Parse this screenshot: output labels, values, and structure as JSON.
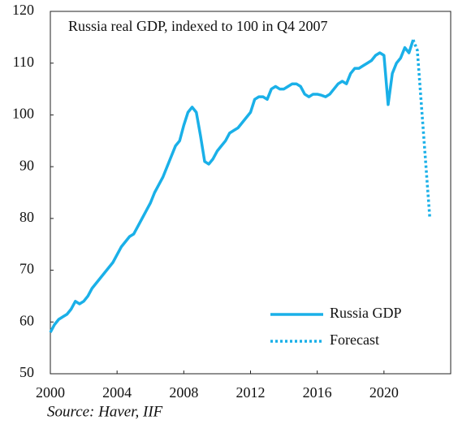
{
  "chart_data": {
    "type": "line",
    "title": "Russia real GDP, indexed to 100 in Q4 2007",
    "source": "Source: Haver, IIF",
    "xlim": [
      2000,
      2024
    ],
    "xticks": [
      2000,
      2004,
      2008,
      2012,
      2016,
      2020
    ],
    "ylim": [
      50,
      120
    ],
    "yticks": [
      50,
      60,
      70,
      80,
      90,
      100,
      110,
      120
    ],
    "grid": false,
    "legend": "lower right",
    "series": [
      {
        "name": "Russia GDP",
        "color": "#1ab0e8",
        "style": "solid",
        "x": [
          2000,
          2000.25,
          2000.5,
          2000.75,
          2001,
          2001.25,
          2001.5,
          2001.75,
          2002,
          2002.25,
          2002.5,
          2002.75,
          2003,
          2003.25,
          2003.5,
          2003.75,
          2004,
          2004.25,
          2004.5,
          2004.75,
          2005,
          2005.25,
          2005.5,
          2005.75,
          2006,
          2006.25,
          2006.5,
          2006.75,
          2007,
          2007.25,
          2007.5,
          2007.75,
          2008,
          2008.25,
          2008.5,
          2008.75,
          2009,
          2009.25,
          2009.5,
          2009.75,
          2010,
          2010.25,
          2010.5,
          2010.75,
          2011,
          2011.25,
          2011.5,
          2011.75,
          2012,
          2012.25,
          2012.5,
          2012.75,
          2013,
          2013.25,
          2013.5,
          2013.75,
          2014,
          2014.25,
          2014.5,
          2014.75,
          2015,
          2015.25,
          2015.5,
          2015.75,
          2016,
          2016.25,
          2016.5,
          2016.75,
          2017,
          2017.25,
          2017.5,
          2017.75,
          2018,
          2018.25,
          2018.5,
          2018.75,
          2019,
          2019.25,
          2019.5,
          2019.75,
          2020,
          2020.25,
          2020.5,
          2020.75,
          2021,
          2021.25,
          2021.5,
          2021.75
        ],
        "values": [
          58,
          59.5,
          60.5,
          61,
          61.5,
          62.5,
          64,
          63.5,
          64,
          65,
          66.5,
          67.5,
          68.5,
          69.5,
          70.5,
          71.5,
          73,
          74.5,
          75.5,
          76.5,
          77,
          78.5,
          80,
          81.5,
          83,
          85,
          86.5,
          88,
          90,
          92,
          94,
          95,
          98,
          100.5,
          101.5,
          100.5,
          96,
          91,
          90.5,
          91.5,
          93,
          94,
          95,
          96.5,
          97,
          97.5,
          98.5,
          99.5,
          100.5,
          103,
          103.5,
          103.5,
          103,
          105,
          105.5,
          105,
          105,
          105.5,
          106,
          106,
          105.5,
          104,
          103.5,
          104,
          104,
          103.8,
          103.5,
          104,
          105,
          106,
          106.5,
          106,
          108,
          109,
          109,
          109.5,
          110,
          110.5,
          111.5,
          112,
          111.5,
          102,
          108,
          110,
          111,
          113,
          112,
          114.5
        ]
      },
      {
        "name": "Forecast",
        "color": "#1ab0e8",
        "style": "dotted",
        "x": [
          2021.75,
          2022,
          2022.75
        ],
        "values": [
          114.5,
          112.5,
          80
        ]
      }
    ]
  }
}
